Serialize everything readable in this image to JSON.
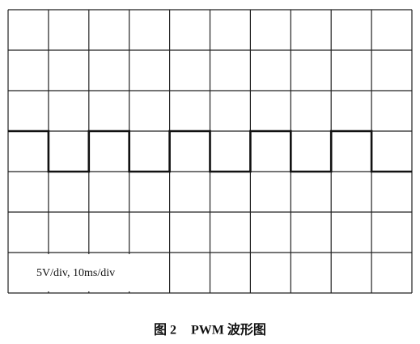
{
  "chart_data": {
    "type": "line",
    "annotation": "5V/div, 10ms/div",
    "figure_label": "图 2",
    "title": "PWM 波形图",
    "x": [
      0,
      1,
      1,
      2,
      2,
      3,
      3,
      4,
      4,
      5,
      5,
      6,
      6,
      7,
      7,
      8,
      8,
      9,
      9,
      10
    ],
    "series": [
      {
        "color": "#111111",
        "values": [
          4,
          4,
          3,
          3,
          4,
          4,
          3,
          3,
          4,
          4,
          3,
          3,
          4,
          4,
          3,
          3,
          4,
          4,
          3,
          3
        ]
      }
    ],
    "xlim": [
      0,
      10
    ],
    "ylim": [
      0,
      7
    ],
    "xticks": [
      0,
      1,
      2,
      3,
      4,
      5,
      6,
      7,
      8,
      9,
      10
    ],
    "yticks": [
      0,
      1,
      2,
      3,
      4,
      5,
      6,
      7
    ],
    "grid": true
  }
}
